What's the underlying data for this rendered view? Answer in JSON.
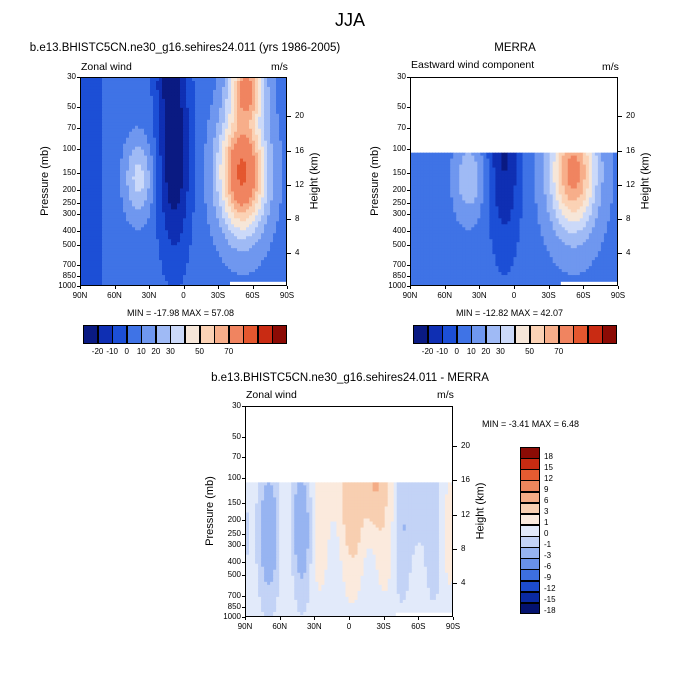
{
  "figure_title": "JJA",
  "colors": {
    "zonal_levels": [
      "#0a1a82",
      "#0f2fb3",
      "#1c4fd6",
      "#3f73e6",
      "#6f97ef",
      "#9fbaf5",
      "#cbd9f9",
      "#f6e6d8",
      "#fbd2b5",
      "#f7ae8a",
      "#f08460",
      "#e4572f",
      "#c92b13",
      "#8c0b05"
    ],
    "diff_levels": [
      "#04126e",
      "#0a2aa0",
      "#1d4ccc",
      "#3d6fe0",
      "#6891ea",
      "#97b4f1",
      "#c3d3f6",
      "#e2eafa",
      "#fbeadd",
      "#f8cfb1",
      "#f4ac86",
      "#ee865c",
      "#e45b31",
      "#c82b12",
      "#8c0b05"
    ]
  },
  "axes": {
    "pressure_ticks": [
      "30",
      "50",
      "70",
      "100",
      "150",
      "200",
      "250",
      "300",
      "400",
      "500",
      "700",
      "850",
      "1000"
    ],
    "height_ticks": [
      "20",
      "16",
      "12",
      "8",
      "4"
    ],
    "lat_ticks": [
      "90N",
      "60N",
      "30N",
      "0",
      "30S",
      "60S",
      "90S"
    ],
    "pressure_label": "Pressure (mb)",
    "height_label": "Height (km)"
  },
  "chart_data": [
    {
      "type": "heatmap",
      "title": "b.e13.BHISTC5CN.ne30_g16.sehires24.011 (yrs 1986-2005)",
      "left_label": "Zonal wind",
      "right_label": "m/s",
      "xlabel": "",
      "ylabel": "Pressure (mb)",
      "y2label": "Height (km)",
      "stats": "MIN = -17.98  MAX =  57.08",
      "colorbar_labels": [
        "-20",
        "-10",
        "0",
        "10",
        "20",
        "30",
        "50",
        "70"
      ]
    },
    {
      "type": "heatmap",
      "title": "MERRA",
      "left_label": "Eastward wind component",
      "right_label": "m/s",
      "xlabel": "",
      "ylabel": "Pressure (mb)",
      "y2label": "Height (km)",
      "stats": "MIN = -12.82  MAX =  42.07",
      "colorbar_labels": [
        "-20",
        "-10",
        "0",
        "10",
        "20",
        "30",
        "50",
        "70"
      ]
    },
    {
      "type": "heatmap",
      "title": "b.e13.BHISTC5CN.ne30_g16.sehires24.011 - MERRA",
      "left_label": "Zonal wind",
      "right_label": "m/s",
      "xlabel": "",
      "ylabel": "Pressure (mb)",
      "y2label": "Height (km)",
      "stats": "MIN =  -3.41  MAX =   6.48",
      "colorbar_labels": [
        "18",
        "15",
        "12",
        "9",
        "6",
        "3",
        "1",
        "0",
        "-1",
        "-3",
        "-6",
        "-9",
        "-12",
        "-15",
        "-18"
      ]
    }
  ]
}
